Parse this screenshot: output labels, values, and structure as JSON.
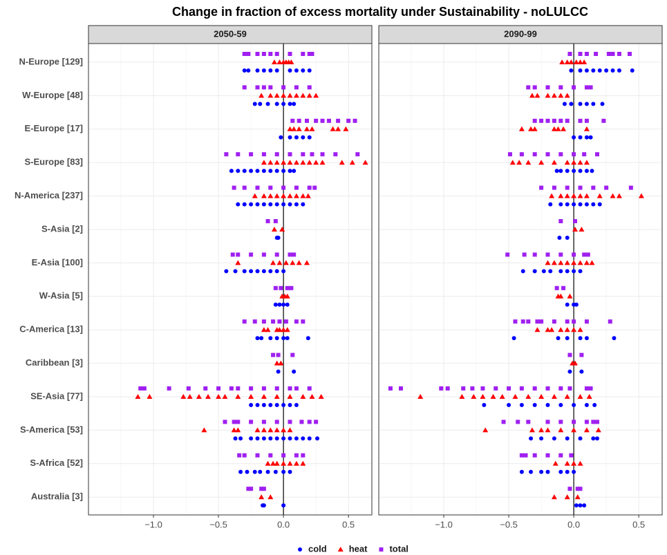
{
  "chart_data": {
    "type": "strip",
    "title": "Change in fraction of excess mortality under Sustainability - noLULCC",
    "categories": [
      "N-Europe [129]",
      "W-Europe [48]",
      "E-Europe [17]",
      "S-Europe [83]",
      "N-America [237]",
      "S-Asia [2]",
      "E-Asia [100]",
      "W-Asia [5]",
      "C-America [13]",
      "Caribbean [3]",
      "SE-Asia [77]",
      "S-America [53]",
      "S-Africa [52]",
      "Australia [3]"
    ],
    "xlim": [
      -1.5,
      0.68
    ],
    "xticks": [
      {
        "value": -1,
        "label": "−1.0"
      },
      {
        "value": -0.5,
        "label": "−0.5"
      },
      {
        "value": 0,
        "label": "0.0"
      },
      {
        "value": 0.5,
        "label": "0.5"
      }
    ],
    "x_minor_ticks": [
      -1.25,
      -0.75,
      -0.25,
      0.25
    ],
    "vline": 0,
    "grid": true,
    "legend_position": "bottom",
    "series": [
      {
        "name": "cold",
        "color": "#0000ff",
        "marker": "circle"
      },
      {
        "name": "heat",
        "color": "#ff0000",
        "marker": "triangle"
      },
      {
        "name": "total",
        "color": "#a020f0",
        "marker": "square"
      }
    ],
    "facets": [
      {
        "title": "2050-59",
        "series": [
          {
            "values": [
              [
                -0.3,
                -0.27,
                -0.2,
                -0.15,
                -0.1,
                -0.05,
                0.05,
                0.1,
                0.15,
                0.2
              ],
              [
                -0.22,
                -0.18,
                -0.12,
                -0.05,
                0,
                0.05,
                0.08
              ],
              [
                -0.02,
                0.05,
                0.1,
                0.15,
                0.2
              ],
              [
                -0.4,
                -0.35,
                -0.3,
                -0.25,
                -0.2,
                -0.15,
                -0.1,
                -0.05,
                0,
                0.05,
                0.08
              ],
              [
                -0.35,
                -0.3,
                -0.25,
                -0.2,
                -0.15,
                -0.1,
                -0.05,
                0,
                0.05,
                0.1,
                0.15
              ],
              [
                -0.05,
                -0.04
              ],
              [
                -0.44,
                -0.37,
                -0.3,
                -0.25,
                -0.2,
                -0.15,
                -0.1,
                -0.05,
                0
              ],
              [
                -0.06,
                -0.03,
                0,
                0.03
              ],
              [
                -0.2,
                -0.17,
                -0.1,
                -0.05,
                0,
                0.03,
                0.19
              ],
              [
                -0.04,
                0.08
              ],
              [
                -0.25,
                -0.2,
                -0.15,
                -0.1,
                -0.05,
                0,
                0.05,
                0.1
              ],
              [
                -0.37,
                -0.33,
                -0.25,
                -0.2,
                -0.15,
                -0.1,
                -0.05,
                0,
                0.05,
                0.1,
                0.15,
                0.2,
                0.26
              ],
              [
                -0.33,
                -0.28,
                -0.22,
                -0.18,
                -0.12,
                -0.06,
                0,
                0.05
              ],
              [
                -0.16,
                -0.15,
                0
              ]
            ]
          },
          {
            "values": [
              [
                -0.07,
                -0.03,
                0,
                0.02,
                0.04,
                0.06
              ],
              [
                -0.17,
                -0.1,
                -0.05,
                0,
                0.05,
                0.1,
                0.15,
                0.2,
                0.25
              ],
              [
                0.05,
                0.08,
                0.12,
                0.18,
                0.22,
                0.38,
                0.42,
                0.48
              ],
              [
                -0.15,
                -0.1,
                -0.05,
                0,
                0.05,
                0.1,
                0.15,
                0.2,
                0.25,
                0.3,
                0.45,
                0.53,
                0.63
              ],
              [
                -0.22,
                -0.15,
                -0.1,
                -0.05,
                0,
                0.05,
                0.1,
                0.15,
                0.19
              ],
              [
                -0.07,
                -0.01
              ],
              [
                -0.35,
                -0.08,
                -0.03,
                0.02,
                0.07,
                0.12,
                0.18
              ],
              [
                -0.01,
                0.01,
                0.03
              ],
              [
                -0.15,
                -0.12,
                -0.05,
                -0.03,
                0,
                0.03
              ],
              [
                -0.05,
                -0.02
              ],
              [
                -1.12,
                -1.03,
                -0.77,
                -0.72,
                -0.65,
                -0.58,
                -0.5,
                -0.45,
                -0.35,
                -0.25,
                -0.15,
                -0.05,
                0.05,
                0.15,
                0.22,
                0.29
              ],
              [
                -0.61,
                -0.38,
                -0.35,
                -0.2,
                -0.15,
                -0.1,
                -0.05,
                0,
                0.05
              ],
              [
                -0.12,
                -0.08,
                -0.05,
                0,
                0.05,
                0.1,
                0.15
              ],
              [
                -0.17,
                -0.1
              ]
            ]
          },
          {
            "values": [
              [
                -0.3,
                -0.27,
                -0.2,
                -0.15,
                -0.1,
                -0.05,
                0.05,
                0.15,
                0.2,
                0.22
              ],
              [
                -0.3,
                -0.2,
                -0.15,
                -0.1,
                0,
                0.1,
                0.2
              ],
              [
                0.07,
                0.12,
                0.18,
                0.25,
                0.3,
                0.35,
                0.42,
                0.5,
                0.55
              ],
              [
                -0.44,
                -0.35,
                -0.25,
                -0.15,
                -0.05,
                0.05,
                0.15,
                0.22,
                0.3,
                0.4,
                0.57
              ],
              [
                -0.38,
                -0.3,
                -0.2,
                -0.1,
                0,
                0.1,
                0.2,
                0.24
              ],
              [
                -0.12,
                -0.06
              ],
              [
                -0.39,
                -0.35,
                -0.25,
                -0.15,
                -0.05,
                0.05,
                0.08
              ],
              [
                -0.06,
                -0.02,
                0.03,
                0.06
              ],
              [
                -0.3,
                -0.22,
                -0.15,
                -0.08,
                -0.03,
                0.02,
                0.1,
                0.15
              ],
              [
                -0.08,
                -0.04,
                0.07
              ],
              [
                -1.1,
                -1.07,
                -0.88,
                -0.73,
                -0.6,
                -0.5,
                -0.4,
                -0.35,
                -0.25,
                -0.15,
                -0.05,
                0.05,
                0.1,
                0.2
              ],
              [
                -0.45,
                -0.38,
                -0.35,
                -0.25,
                -0.15,
                -0.05,
                0.05,
                0.14,
                0.2,
                0.25
              ],
              [
                -0.34,
                -0.3,
                -0.2,
                -0.1,
                0,
                0.1,
                0.15
              ],
              [
                -0.27,
                -0.25,
                -0.17,
                -0.15
              ]
            ]
          }
        ]
      },
      {
        "title": "2090-99",
        "series": [
          {
            "values": [
              [
                -0.02,
                0.05,
                0.1,
                0.15,
                0.2,
                0.25,
                0.3,
                0.35,
                0.45
              ],
              [
                -0.07,
                -0.02,
                0.05,
                0.1,
                0.15,
                0.22
              ],
              [
                0,
                0.05,
                0.1,
                0.13
              ],
              [
                -0.13,
                -0.1,
                -0.05,
                0,
                0.05,
                0.1,
                0.14
              ],
              [
                -0.18,
                -0.1,
                -0.05,
                0,
                0.05,
                0.1,
                0.15,
                0.2
              ],
              [
                -0.11,
                -0.05
              ],
              [
                -0.39,
                -0.3,
                -0.23,
                -0.18,
                -0.1,
                -0.05,
                0,
                0.05
              ],
              [
                -0.05,
                0,
                0.02
              ],
              [
                -0.46,
                -0.12,
                -0.05,
                0.05,
                0.1,
                0.31
              ],
              [
                -0.03,
                0.06
              ],
              [
                -0.69,
                -0.5,
                -0.4,
                -0.3,
                -0.2,
                -0.1,
                0,
                0.1,
                0.16
              ],
              [
                -0.33,
                -0.25,
                -0.15,
                -0.05,
                0.05,
                0.15,
                0.18
              ],
              [
                -0.4,
                -0.33,
                -0.25,
                -0.2,
                -0.1,
                -0.05,
                0
              ],
              [
                0.02,
                0.05,
                0.08
              ]
            ]
          },
          {
            "values": [
              [
                -0.09,
                -0.05,
                -0.02,
                0.02,
                0.05,
                0.08
              ],
              [
                -0.32,
                -0.28,
                -0.2,
                -0.15,
                -0.1,
                -0.05
              ],
              [
                -0.4,
                -0.33,
                -0.3,
                -0.15,
                -0.12,
                -0.08,
                0.1
              ],
              [
                -0.47,
                -0.42,
                -0.35,
                -0.25,
                -0.15,
                -0.05,
                0,
                0.05,
                0.1
              ],
              [
                -0.17,
                -0.1,
                -0.05,
                0,
                0.05,
                0.1,
                0.2,
                0.3,
                0.35,
                0.52
              ],
              [
                0.01,
                0.06
              ],
              [
                -0.2,
                -0.15,
                -0.1,
                -0.05,
                0,
                0.05,
                0.1,
                0.14
              ],
              [
                -0.12,
                -0.1,
                -0.03
              ],
              [
                -0.28,
                -0.2,
                -0.17,
                -0.1,
                -0.05,
                0,
                0.05
              ],
              [
                -0.01,
                0.01
              ],
              [
                -1.18,
                -0.86,
                -0.77,
                -0.7,
                -0.62,
                -0.55,
                -0.45,
                -0.35,
                -0.25,
                -0.15,
                -0.05,
                0.05,
                0.12
              ],
              [
                -0.68,
                -0.32,
                -0.25,
                -0.2,
                -0.1,
                0,
                0.1,
                0.19
              ],
              [
                -0.14,
                -0.05,
                0,
                0.05
              ],
              [
                -0.15,
                -0.05,
                0.03
              ]
            ]
          },
          {
            "values": [
              [
                -0.03,
                0.05,
                0.1,
                0.17,
                0.27,
                0.3,
                0.35,
                0.43
              ],
              [
                -0.35,
                -0.3,
                -0.2,
                -0.1,
                0,
                0.1,
                0.13
              ],
              [
                -0.3,
                -0.25,
                -0.2,
                -0.15,
                -0.1,
                -0.05,
                0.05,
                0.1,
                0.23
              ],
              [
                -0.49,
                -0.4,
                -0.3,
                -0.2,
                -0.1,
                0,
                0.08,
                0.18
              ],
              [
                -0.25,
                -0.15,
                -0.05,
                0.05,
                0.15,
                0.25,
                0.44
              ],
              [
                -0.1,
                0.01
              ],
              [
                -0.51,
                -0.38,
                -0.3,
                -0.2,
                -0.1,
                0,
                0.08,
                0.11
              ],
              [
                -0.13,
                -0.08
              ],
              [
                -0.45,
                -0.39,
                -0.35,
                -0.28,
                -0.25,
                -0.15,
                -0.05,
                0,
                0.1,
                0.28
              ],
              [
                -0.03,
                0.06
              ],
              [
                -1.41,
                -1.33,
                -1.02,
                -0.97,
                -0.85,
                -0.78,
                -0.7,
                -0.6,
                -0.5,
                -0.4,
                -0.3,
                -0.2,
                -0.1,
                -0.03,
                0.1,
                0.13
              ],
              [
                -0.54,
                -0.43,
                -0.35,
                -0.2,
                -0.1,
                0,
                0.1,
                0.15,
                0.18
              ],
              [
                -0.4,
                -0.37,
                -0.3,
                -0.2,
                -0.1,
                -0.02
              ],
              [
                -0.03,
                0.03,
                0.05
              ]
            ]
          }
        ]
      }
    ]
  }
}
